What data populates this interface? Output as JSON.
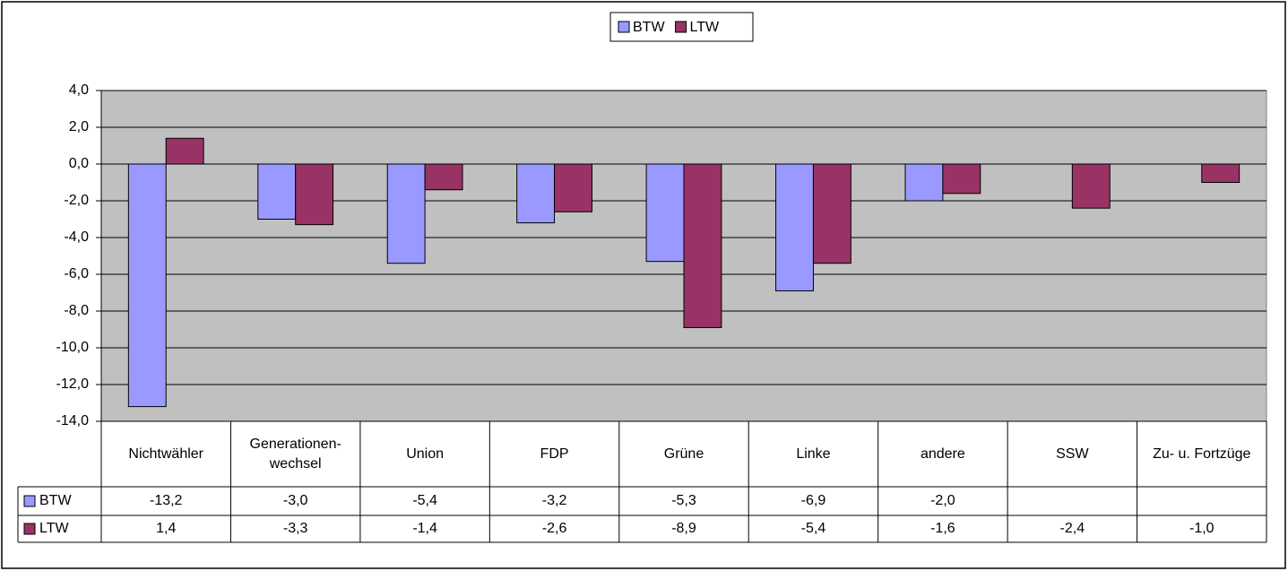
{
  "chart_data": {
    "type": "bar",
    "categories": [
      "Nichtwähler",
      "Generationen-wechsel",
      "Union",
      "FDP",
      "Grüne",
      "Linke",
      "andere",
      "SSW",
      "Zu- u. Fortzüge"
    ],
    "series": [
      {
        "name": "BTW",
        "color": "#9999ff",
        "values": [
          -13.2,
          -3.0,
          -5.4,
          -3.2,
          -5.3,
          -6.9,
          -2.0,
          null,
          null
        ],
        "value_labels": [
          "-13,2",
          "-3,0",
          "-5,4",
          "-3,2",
          "-5,3",
          "-6,9",
          "-2,0",
          null,
          null
        ]
      },
      {
        "name": "LTW",
        "color": "#993366",
        "values": [
          1.4,
          -3.3,
          -1.4,
          -2.6,
          -8.9,
          -5.4,
          -1.6,
          -2.4,
          -1.0
        ],
        "value_labels": [
          "1,4",
          "-3,3",
          "-1,4",
          "-2,6",
          "-8,9",
          "-5,4",
          "-1,6",
          "-2,4",
          "-1,0"
        ]
      }
    ],
    "ylim": [
      -14,
      4
    ],
    "yticks": [
      {
        "value": -14,
        "label": "-14,0"
      },
      {
        "value": -12,
        "label": "-12,0"
      },
      {
        "value": -10,
        "label": "-10,0"
      },
      {
        "value": -8,
        "label": "-8,0"
      },
      {
        "value": -6,
        "label": "-6,0"
      },
      {
        "value": -4,
        "label": "-4,0"
      },
      {
        "value": -2,
        "label": "-2,0"
      },
      {
        "value": 0,
        "label": "0,0"
      },
      {
        "value": 2,
        "label": "2,0"
      },
      {
        "value": 4,
        "label": "4,0"
      }
    ],
    "grid": true,
    "plot_background": "#c0c0c0",
    "legend": "top"
  }
}
